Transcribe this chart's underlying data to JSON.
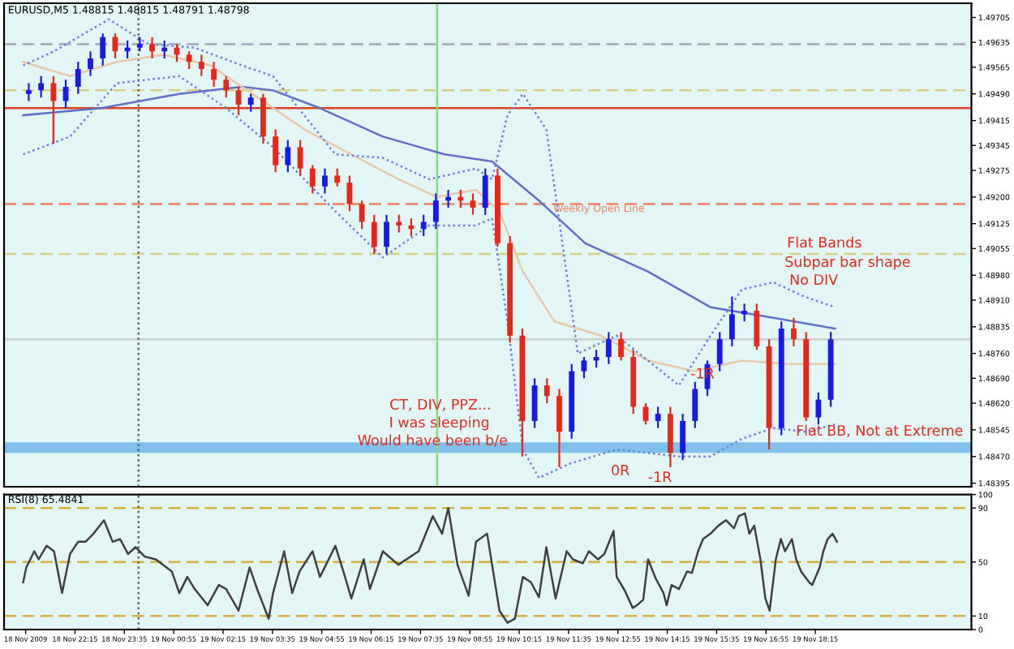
{
  "chart_data": [
    {
      "type": "candlestick",
      "title": "EURUSD,M5 1.48815 1.48815 1.48791 1.48798",
      "colors": [
        "#1a1ae6",
        "#1a1ae6",
        "#e6281a",
        "#1a1ae6",
        "#1a1ae6",
        "#1a1ae6",
        "#1a1ae6",
        "#e6281a",
        "#1a1ae6",
        "#1a1ae6",
        "#e6281a",
        "#1a1ae6",
        "#e6281a",
        "#e6281a",
        "#e6281a",
        "#e6281a",
        "#e6281a",
        "#e6281a",
        "#1a1ae6",
        "#e6281a",
        "#e6281a",
        "#1a1ae6",
        "#e6281a",
        "#e6281a",
        "#1a1ae6",
        "#e6281a",
        "#e6281a",
        "#e6281a",
        "#e6281a",
        "#1a1ae6",
        "#e6281a",
        "#e6281a",
        "#1a1ae6",
        "#1a1ae6",
        "#1a1ae6",
        "#e6281a",
        "#e6281a",
        "#1a1ae6",
        "#e6281a",
        "#e6281a",
        "#e6281a",
        "#1a1ae6",
        "#e6281a",
        "#e6281a",
        "#1a1ae6",
        "#1a1ae6",
        "#1a1ae6",
        "#1a1ae6",
        "#e6281a",
        "#e6281a",
        "#e6281a",
        "#1a1ae6",
        "#e6281a",
        "#1a1ae6",
        "#1a1ae6",
        "#1a1ae6",
        "#1a1ae6",
        "#1a1ae6",
        "#1a1ae6",
        "#e6281a",
        "#e6281a",
        "#1a1ae6",
        "#e6281a",
        "#e6281a",
        "#1a1ae6",
        "#1a1ae6"
      ],
      "x": [
        "2009-11-18T21:00",
        "2009-11-18T21:20",
        "2009-11-18T21:40",
        "2009-11-18T22:00",
        "2009-11-18T22:20",
        "2009-11-18T22:40",
        "2009-11-18T23:00",
        "2009-11-18T23:20",
        "2009-11-18T23:40",
        "2009-11-19T00:00",
        "2009-11-19T00:20",
        "2009-11-19T00:40",
        "2009-11-19T01:00",
        "2009-11-19T01:20",
        "2009-11-19T01:40",
        "2009-11-19T02:00",
        "2009-11-19T02:20",
        "2009-11-19T02:40",
        "2009-11-19T03:00",
        "2009-11-19T03:20",
        "2009-11-19T03:40",
        "2009-11-19T04:00",
        "2009-11-19T04:20",
        "2009-11-19T04:40",
        "2009-11-19T05:00",
        "2009-11-19T05:20",
        "2009-11-19T05:40",
        "2009-11-19T06:00",
        "2009-11-19T06:20",
        "2009-11-19T06:40",
        "2009-11-19T07:00",
        "2009-11-19T07:20",
        "2009-11-19T07:40",
        "2009-11-19T08:00",
        "2009-11-19T08:20",
        "2009-11-19T08:40",
        "2009-11-19T09:00",
        "2009-11-19T09:20",
        "2009-11-19T09:40",
        "2009-11-19T10:00",
        "2009-11-19T10:20",
        "2009-11-19T10:40",
        "2009-11-19T11:00",
        "2009-11-19T11:20",
        "2009-11-19T11:40",
        "2009-11-19T12:00",
        "2009-11-19T12:20",
        "2009-11-19T12:40",
        "2009-11-19T13:00",
        "2009-11-19T13:20",
        "2009-11-19T13:40",
        "2009-11-19T14:00",
        "2009-11-19T14:20",
        "2009-11-19T14:40",
        "2009-11-19T15:00",
        "2009-11-19T15:20",
        "2009-11-19T15:40",
        "2009-11-19T16:00",
        "2009-11-19T16:20",
        "2009-11-19T16:40",
        "2009-11-19T17:00",
        "2009-11-19T17:20",
        "2009-11-19T17:40",
        "2009-11-19T18:00",
        "2009-11-19T18:20",
        "2009-11-19T18:40"
      ],
      "ohlc": [
        [
          1.4949,
          1.4952,
          1.4947,
          1.495
        ],
        [
          1.495,
          1.4954,
          1.4948,
          1.4952
        ],
        [
          1.4952,
          1.4954,
          1.4935,
          1.4947
        ],
        [
          1.4947,
          1.4953,
          1.4945,
          1.4951
        ],
        [
          1.4951,
          1.4958,
          1.4949,
          1.4956
        ],
        [
          1.4956,
          1.4961,
          1.4954,
          1.4959
        ],
        [
          1.4959,
          1.4966,
          1.4957,
          1.4965
        ],
        [
          1.4965,
          1.4966,
          1.4959,
          1.4961
        ],
        [
          1.4961,
          1.4964,
          1.4959,
          1.4962
        ],
        [
          1.4962,
          1.4965,
          1.4961,
          1.4963
        ],
        [
          1.4963,
          1.4965,
          1.4959,
          1.4961
        ],
        [
          1.4961,
          1.4964,
          1.4959,
          1.4962
        ],
        [
          1.4962,
          1.4963,
          1.4958,
          1.496
        ],
        [
          1.496,
          1.4961,
          1.4956,
          1.4958
        ],
        [
          1.4958,
          1.496,
          1.4954,
          1.4956
        ],
        [
          1.4956,
          1.4958,
          1.4951,
          1.4953
        ],
        [
          1.4953,
          1.4954,
          1.4948,
          1.495
        ],
        [
          1.495,
          1.4951,
          1.4943,
          1.4946
        ],
        [
          1.4946,
          1.4949,
          1.4944,
          1.4948
        ],
        [
          1.4948,
          1.4949,
          1.4935,
          1.4937
        ],
        [
          1.4937,
          1.4939,
          1.4927,
          1.4929
        ],
        [
          1.4929,
          1.4936,
          1.4927,
          1.4934
        ],
        [
          1.4934,
          1.4936,
          1.4926,
          1.4928
        ],
        [
          1.4928,
          1.4929,
          1.4921,
          1.4923
        ],
        [
          1.4923,
          1.4928,
          1.4921,
          1.4926
        ],
        [
          1.4926,
          1.4928,
          1.4923,
          1.4924
        ],
        [
          1.4924,
          1.4926,
          1.4916,
          1.4918
        ],
        [
          1.4918,
          1.4919,
          1.4911,
          1.4913
        ],
        [
          1.4913,
          1.4915,
          1.4904,
          1.4906
        ],
        [
          1.4906,
          1.4915,
          1.4904,
          1.4913
        ],
        [
          1.4913,
          1.4915,
          1.491,
          1.4912
        ],
        [
          1.4912,
          1.4914,
          1.4909,
          1.4911
        ],
        [
          1.4911,
          1.4915,
          1.4909,
          1.4913
        ],
        [
          1.4913,
          1.4921,
          1.4911,
          1.4919
        ],
        [
          1.4919,
          1.4922,
          1.4917,
          1.492
        ],
        [
          1.492,
          1.4922,
          1.4917,
          1.4919
        ],
        [
          1.4919,
          1.4921,
          1.4915,
          1.4917
        ],
        [
          1.4917,
          1.4928,
          1.4915,
          1.4926
        ],
        [
          1.4926,
          1.4928,
          1.4906,
          1.4907
        ],
        [
          1.4907,
          1.4909,
          1.4879,
          1.4881
        ],
        [
          1.4881,
          1.4883,
          1.4847,
          1.4857
        ],
        [
          1.4857,
          1.4869,
          1.4855,
          1.4867
        ],
        [
          1.4867,
          1.4869,
          1.4862,
          1.4864
        ],
        [
          1.4864,
          1.4866,
          1.4844,
          1.4854
        ],
        [
          1.4854,
          1.4873,
          1.4852,
          1.4871
        ],
        [
          1.4871,
          1.4875,
          1.4869,
          1.4874
        ],
        [
          1.4874,
          1.4877,
          1.4872,
          1.4875
        ],
        [
          1.4875,
          1.4882,
          1.4873,
          1.488
        ],
        [
          1.488,
          1.4882,
          1.4874,
          1.4875
        ],
        [
          1.4875,
          1.4877,
          1.4859,
          1.4861
        ],
        [
          1.4861,
          1.4862,
          1.4856,
          1.4857
        ],
        [
          1.4857,
          1.4861,
          1.4855,
          1.4859
        ],
        [
          1.4859,
          1.4861,
          1.4844,
          1.4848
        ],
        [
          1.4848,
          1.4859,
          1.4846,
          1.4857
        ],
        [
          1.4857,
          1.4868,
          1.4855,
          1.4866
        ],
        [
          1.4866,
          1.4874,
          1.4864,
          1.4873
        ],
        [
          1.4873,
          1.4882,
          1.4871,
          1.488
        ],
        [
          1.488,
          1.4892,
          1.4878,
          1.4887
        ],
        [
          1.4887,
          1.489,
          1.4885,
          1.4888
        ],
        [
          1.4888,
          1.489,
          1.4877,
          1.4878
        ],
        [
          1.4878,
          1.488,
          1.4849,
          1.4855
        ],
        [
          1.4855,
          1.4885,
          1.4853,
          1.4883
        ],
        [
          1.4883,
          1.4886,
          1.4878,
          1.488
        ],
        [
          1.488,
          1.4882,
          1.4857,
          1.4858
        ],
        [
          1.4858,
          1.4865,
          1.4856,
          1.4863
        ],
        [
          1.4863,
          1.4882,
          1.4861,
          1.488
        ]
      ],
      "series": [
        {
          "type": "line",
          "color": "#6070c8",
          "x": [
            "2009-11-18T20:51",
            "2009-11-18T22:58",
            "2009-11-19T01:04",
            "2009-11-19T02:46",
            "2009-11-19T03:36",
            "2009-11-19T04:52",
            "2009-11-19T06:34",
            "2009-11-19T08:14",
            "2009-11-19T09:31",
            "2009-11-19T10:47",
            "2009-11-19T12:02",
            "2009-11-19T13:44",
            "2009-11-19T15:25",
            "2009-11-19T17:07",
            "2009-11-19T18:47"
          ],
          "values": [
            1.4943,
            1.4945,
            1.4949,
            1.4951,
            1.495,
            1.4945,
            1.4937,
            1.4932,
            1.493,
            1.4919,
            1.4907,
            1.4899,
            1.4889,
            1.4886,
            1.4883
          ]
        },
        {
          "type": "line",
          "color": "#e8c8a8",
          "x": [
            "2009-11-18T20:51",
            "2009-11-18T22:07",
            "2009-11-18T23:23",
            "2009-11-19T00:39",
            "2009-11-19T01:55",
            "2009-11-19T03:11",
            "2009-11-19T04:27",
            "2009-11-19T05:43",
            "2009-11-19T06:59",
            "2009-11-19T08:02",
            "2009-11-19T09:05",
            "2009-11-19T09:43",
            "2009-11-19T10:21",
            "2009-11-19T11:12",
            "2009-11-19T12:28",
            "2009-11-19T13:44",
            "2009-11-19T14:59",
            "2009-11-19T16:16",
            "2009-11-19T17:32",
            "2009-11-19T18:47"
          ],
          "values": [
            1.4958,
            1.4954,
            1.4958,
            1.496,
            1.4957,
            1.4948,
            1.4939,
            1.4932,
            1.4925,
            1.492,
            1.4922,
            1.4916,
            1.4899,
            1.4885,
            1.4881,
            1.4874,
            1.4871,
            1.4874,
            1.4873,
            1.4873
          ]
        },
        {
          "type": "line",
          "color": "#6a7ee0",
          "line_style": "dotted",
          "x": [
            "2009-11-18T20:51",
            "2009-11-18T21:41",
            "2009-11-18T23:10",
            "2009-11-19T00:14",
            "2009-11-19T01:29",
            "2009-11-19T02:46",
            "2009-11-19T03:36",
            "2009-11-19T05:17",
            "2009-11-19T06:34",
            "2009-11-19T07:49",
            "2009-11-19T09:05",
            "2009-11-19T09:31",
            "2009-11-19T09:56",
            "2009-11-19T10:21",
            "2009-11-19T10:59",
            "2009-11-19T11:25",
            "2009-11-19T11:50",
            "2009-11-19T12:53",
            "2009-11-19T14:34",
            "2009-11-19T15:25",
            "2009-11-19T16:16",
            "2009-11-19T17:07",
            "2009-11-19T17:57",
            "2009-11-19T18:47"
          ],
          "values": [
            1.4957,
            1.4961,
            1.497,
            1.4963,
            1.4962,
            1.4957,
            1.4954,
            1.4932,
            1.4931,
            1.4925,
            1.4928,
            1.4925,
            1.4943,
            1.4949,
            1.4939,
            1.4907,
            1.4876,
            1.4881,
            1.4867,
            1.4881,
            1.4894,
            1.4896,
            1.4892,
            1.4889
          ]
        },
        {
          "type": "line",
          "color": "#6a7ee0",
          "line_style": "dotted",
          "x": [
            "2009-11-18T20:51",
            "2009-11-18T22:07",
            "2009-11-18T23:23",
            "2009-11-19T01:04",
            "2009-11-19T02:20",
            "2009-11-19T03:36",
            "2009-11-19T05:17",
            "2009-11-19T06:34",
            "2009-11-19T07:49",
            "2009-11-19T09:05",
            "2009-11-19T09:31",
            "2009-11-19T09:56",
            "2009-11-19T10:21",
            "2009-11-19T10:47",
            "2009-11-19T11:37",
            "2009-11-19T12:53",
            "2009-11-19T14:34",
            "2009-11-19T15:25",
            "2009-11-19T16:16",
            "2009-11-19T17:07",
            "2009-11-19T17:57",
            "2009-11-19T18:47"
          ],
          "values": [
            1.4932,
            1.4937,
            1.4952,
            1.4954,
            1.4945,
            1.4934,
            1.4916,
            1.4903,
            1.4912,
            1.4912,
            1.4914,
            1.4885,
            1.4849,
            1.4841,
            1.4845,
            1.4849,
            1.4847,
            1.4847,
            1.4852,
            1.4855,
            1.4854,
            1.4856
          ]
        }
      ],
      "ref_lines": [
        {
          "axis": "y",
          "value": 1.4963,
          "color": "#a0a8b8",
          "line_style": "dashed"
        },
        {
          "axis": "y",
          "value": 1.495,
          "color": "#d8d080",
          "line_style": "dashed"
        },
        {
          "axis": "y",
          "value": 1.4945,
          "color": "#e04020",
          "line_style": "solid"
        },
        {
          "axis": "y",
          "value": 1.4918,
          "color": "#f08060",
          "line_style": "dashed",
          "label": "Weekly Open Line"
        },
        {
          "axis": "y",
          "value": 1.4904,
          "color": "#d8d080",
          "line_style": "dashed"
        },
        {
          "axis": "y",
          "value": 1.488,
          "color": "#c8d0d0",
          "line_style": "solid"
        },
        {
          "axis": "x",
          "value": "2009-11-18T23:58",
          "color": "#606060",
          "line_style": "dotted"
        },
        {
          "axis": "x",
          "value": "2009-11-19T08:02",
          "color": "#80e080",
          "line_style": "solid"
        }
      ],
      "bands": [
        {
          "axis": "y",
          "from": 1.4848,
          "to": 1.4851,
          "color": "#7fc0ec"
        }
      ],
      "annotations": [
        "CT, DIV, PPZ...",
        "I was sleeping",
        "Would have been b/e",
        "-1R",
        "0R",
        "-1R",
        "Flat Bands",
        "Subpar bar shape",
        "No DIV",
        "Flat BB, Not at Extreme"
      ],
      "xlim": [
        "2009-11-18T20:20",
        "2009-11-19T22:28"
      ],
      "ylim": [
        1.48385,
        1.49745
      ],
      "tick_labels": "y",
      "yticks": [
        1.49705,
        1.49635,
        1.49565,
        {
          "value": 1.4949,
          "label": "1.49490"
        },
        1.49415,
        1.49345,
        1.49275,
        {
          "value": 1.492,
          "label": "1.49200"
        },
        1.49125,
        1.49055,
        {
          "value": 1.4898,
          "label": "1.48980"
        },
        {
          "value": 1.4891,
          "label": "1.48910"
        },
        1.48835,
        {
          "value": 1.4876,
          "label": "1.48760"
        },
        {
          "value": 1.4869,
          "label": "1.48690"
        },
        {
          "value": 1.4862,
          "label": "1.48620"
        },
        1.48545,
        {
          "value": 1.4847,
          "label": "1.48470"
        },
        1.48395
      ]
    },
    {
      "type": "line",
      "title": "RSI(8) 65.4841",
      "series": [
        {
          "color": "#404040",
          "x": [
            "2009-11-18T20:51",
            "2009-11-18T20:56",
            "2009-11-18T21:09",
            "2009-11-18T21:16",
            "2009-11-18T21:29",
            "2009-11-18T21:41",
            "2009-11-18T21:54",
            "2009-11-18T22:07",
            "2009-11-18T22:20",
            "2009-11-18T22:32",
            "2009-11-18T22:45",
            "2009-11-18T23:02",
            "2009-11-18T23:16",
            "2009-11-18T23:28",
            "2009-11-18T23:41",
            "2009-11-18T23:53",
            "2009-11-19T00:08",
            "2009-11-19T00:26",
            "2009-11-19T00:52",
            "2009-11-19T01:04",
            "2009-11-19T01:17",
            "2009-11-19T01:29",
            "2009-11-19T01:50",
            "2009-11-19T02:08",
            "2009-11-19T02:20",
            "2009-11-19T02:40",
            "2009-11-19T02:58",
            "2009-11-19T03:11",
            "2009-11-19T03:29",
            "2009-11-19T03:36",
            "2009-11-19T03:54",
            "2009-11-19T04:07",
            "2009-11-19T04:19",
            "2009-11-19T04:40",
            "2009-11-19T04:52",
            "2009-11-19T05:17",
            "2009-11-19T05:30",
            "2009-11-19T05:43",
            "2009-11-19T06:03",
            "2009-11-19T06:13",
            "2009-11-19T06:34",
            "2009-11-19T06:59",
            "2009-11-19T07:32",
            "2009-11-19T07:55",
            "2009-11-19T08:10",
            "2009-11-19T08:20",
            "2009-11-19T08:35",
            "2009-11-19T08:53",
            "2009-11-19T09:05",
            "2009-11-19T09:23",
            "2009-11-19T09:43",
            "2009-11-19T09:56",
            "2009-11-19T10:08",
            "2009-11-19T10:21",
            "2009-11-19T10:34",
            "2009-11-19T10:47",
            "2009-11-19T10:59",
            "2009-11-19T11:14",
            "2009-11-19T11:32",
            "2009-11-19T11:42",
            "2009-11-19T11:58",
            "2009-11-19T12:08",
            "2009-11-19T12:23",
            "2009-11-19T12:33",
            "2009-11-19T12:48",
            "2009-11-19T12:53",
            "2009-11-19T13:06",
            "2009-11-19T13:19",
            "2009-11-19T13:26",
            "2009-11-19T13:36",
            "2009-11-19T13:44",
            "2009-11-19T13:56",
            "2009-11-19T14:09",
            "2009-11-19T14:14",
            "2009-11-19T14:22",
            "2009-11-19T14:34",
            "2009-11-19T14:47",
            "2009-11-19T14:55",
            "2009-11-19T15:05",
            "2009-11-19T15:13",
            "2009-11-19T15:25",
            "2009-11-19T15:38",
            "2009-11-19T15:50",
            "2009-11-19T16:03",
            "2009-11-19T16:11",
            "2009-11-19T16:21",
            "2009-11-19T16:28",
            "2009-11-19T16:36",
            "2009-11-19T16:46",
            "2009-11-19T16:54",
            "2009-11-19T17:01",
            "2009-11-19T17:11",
            "2009-11-19T17:19",
            "2009-11-19T17:26",
            "2009-11-19T17:37",
            "2009-11-19T17:44",
            "2009-11-19T17:52",
            "2009-11-19T18:05",
            "2009-11-19T18:10",
            "2009-11-19T18:22",
            "2009-11-19T18:28",
            "2009-11-19T18:35",
            "2009-11-19T18:43",
            "2009-11-19T18:50"
          ],
          "values": [
            35,
            46,
            58,
            52,
            62,
            58,
            27,
            56,
            65,
            65,
            71,
            81,
            65,
            67,
            56,
            61,
            54,
            52,
            43,
            27,
            39,
            30,
            18,
            33,
            30,
            14,
            46,
            29,
            8,
            27,
            58,
            27,
            43,
            58,
            39,
            62,
            43,
            23,
            52,
            30,
            58,
            48,
            58,
            84,
            71,
            90,
            48,
            25,
            65,
            71,
            14,
            5,
            8,
            39,
            35,
            24,
            61,
            23,
            58,
            52,
            49,
            58,
            52,
            56,
            73,
            39,
            29,
            16,
            18,
            22,
            52,
            38,
            27,
            18,
            33,
            30,
            43,
            42,
            58,
            67,
            71,
            77,
            81,
            75,
            84,
            86,
            71,
            77,
            52,
            23,
            14,
            52,
            67,
            58,
            67,
            52,
            43,
            35,
            33,
            46,
            58,
            67,
            71,
            65
          ]
        }
      ],
      "ref_lines": [
        {
          "axis": "y",
          "value": 90,
          "color": "#d8b040",
          "line_style": "dashed"
        },
        {
          "axis": "y",
          "value": 50,
          "color": "#d8b040",
          "line_style": "dashed"
        },
        {
          "axis": "y",
          "value": 10,
          "color": "#d8b040",
          "line_style": "dashed"
        },
        {
          "axis": "x",
          "value": "2009-11-18T23:58",
          "color": "#606060",
          "line_style": "dotted"
        }
      ],
      "xlim": [
        "2009-11-18T20:20",
        "2009-11-19T22:28"
      ],
      "ylim": [
        0,
        100
      ],
      "yticks": [
        100,
        90,
        50,
        10,
        0
      ],
      "xticks": [
        {
          "value": "2009-11-18T20:55",
          "label": "18 Nov 2009"
        },
        {
          "value": "2009-11-18T22:15",
          "label": "18 Nov 22:15"
        },
        {
          "value": "2009-11-18T23:35",
          "label": "18 Nov 23:35"
        },
        {
          "value": "2009-11-19T00:55",
          "label": "19 Nov 00:55"
        },
        {
          "value": "2009-11-19T02:15",
          "label": "19 Nov 02:15"
        },
        {
          "value": "2009-11-19T03:35",
          "label": "19 Nov 03:35"
        },
        {
          "value": "2009-11-19T04:55",
          "label": "19 Nov 04:55"
        },
        {
          "value": "2009-11-19T06:15",
          "label": "19 Nov 06:15"
        },
        {
          "value": "2009-11-19T07:35",
          "label": "19 Nov 07:35"
        },
        {
          "value": "2009-11-19T08:55",
          "label": "19 Nov 08:55"
        },
        {
          "value": "2009-11-19T10:15",
          "label": "19 Nov 10:15"
        },
        {
          "value": "2009-11-19T11:35",
          "label": "19 Nov 11:35"
        },
        {
          "value": "2009-11-19T12:55",
          "label": "19 Nov 12:55"
        },
        {
          "value": "2009-11-19T14:15",
          "label": "19 Nov 14:15"
        },
        {
          "value": "2009-11-19T15:35",
          "label": "19 Nov 15:35"
        },
        {
          "value": "2009-11-19T16:55",
          "label": "19 Nov 16:55"
        },
        {
          "value": "2009-11-19T18:15",
          "label": "19 Nov 18:15"
        }
      ]
    }
  ]
}
